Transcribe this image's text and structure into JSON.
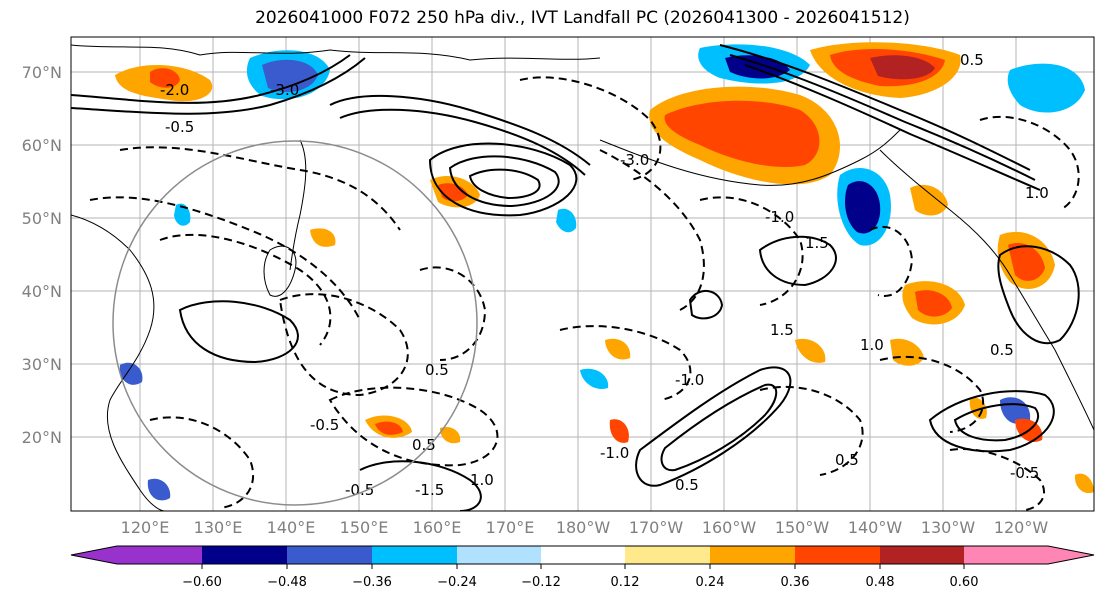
{
  "title": "2026041000 F072 250 hPa div., IVT Landfall PC (2026041300 - 2026041512)",
  "latitude_labels": [
    "70°N",
    "60°N",
    "50°N",
    "40°N",
    "30°N",
    "20°N"
  ],
  "longitude_labels": [
    "120°E",
    "130°E",
    "140°E",
    "150°E",
    "160°E",
    "170°E",
    "180°W",
    "170°W",
    "160°W",
    "150°W",
    "140°W",
    "130°W",
    "120°W"
  ],
  "colorbar": {
    "ticks": [
      "−0.60",
      "−0.48",
      "−0.36",
      "−0.24",
      "−0.12",
      "0.12",
      "0.24",
      "0.36",
      "0.48",
      "0.60"
    ],
    "colors": [
      "#9932cc",
      "#00008b",
      "#3a5bcd",
      "#00bfff",
      "#b0e2ff",
      "#ffffff",
      "#ffe98b",
      "#ffa500",
      "#ff4500",
      "#b22222",
      "#ff85b4"
    ]
  },
  "contour_labels": [
    "-0.5",
    "-1.0",
    "-1.5",
    "-3.0",
    "-2.0",
    "0.5",
    "1.0",
    "1.5",
    "3.0"
  ]
}
